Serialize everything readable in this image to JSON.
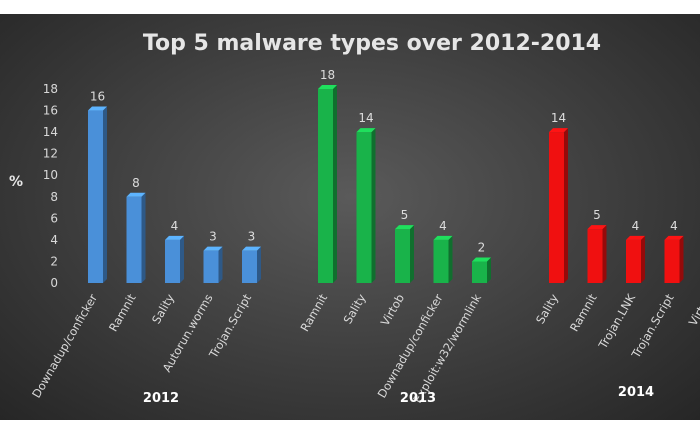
{
  "chart_data": {
    "type": "bar",
    "title": "Top 5 malware types over 2012-2014",
    "ylabel": "%",
    "ylim": [
      0,
      18
    ],
    "yticks": [
      0,
      2,
      4,
      6,
      8,
      10,
      12,
      14,
      16,
      18
    ],
    "grid": false,
    "legend": "none",
    "groups": [
      {
        "name": "2012",
        "color": "#4a90d9",
        "categories": [
          "Downadup/conficker",
          "Ramnit",
          "Sality",
          "Autorun.worms",
          "Trojan.Script"
        ],
        "values": [
          16,
          8,
          4,
          3,
          3
        ]
      },
      {
        "name": "2013",
        "color": "#19b34a",
        "categories": [
          "Ramnit",
          "Sality",
          "Virtob",
          "Downadup/conficker",
          "Exploit:w32/wormlink"
        ],
        "values": [
          18,
          14,
          5,
          4,
          2
        ]
      },
      {
        "name": "2014",
        "color": "#f01010",
        "categories": [
          "Sality",
          "Ramnit",
          "Trojan.LNK",
          "Trojan.Script",
          "Virtob"
        ],
        "values": [
          14,
          5,
          4,
          4,
          null
        ]
      }
    ]
  }
}
